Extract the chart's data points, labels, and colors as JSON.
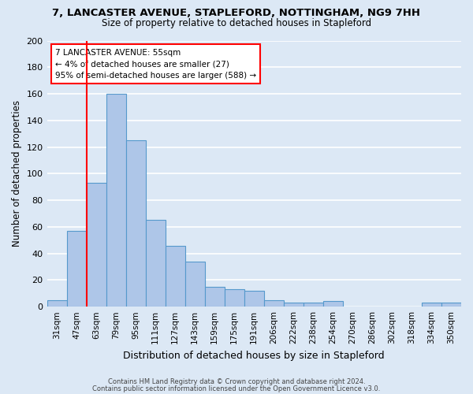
{
  "title1": "7, LANCASTER AVENUE, STAPLEFORD, NOTTINGHAM, NG9 7HH",
  "title2": "Size of property relative to detached houses in Stapleford",
  "xlabel": "Distribution of detached houses by size in Stapleford",
  "ylabel": "Number of detached properties",
  "categories": [
    "31sqm",
    "47sqm",
    "63sqm",
    "79sqm",
    "95sqm",
    "111sqm",
    "127sqm",
    "143sqm",
    "159sqm",
    "175sqm",
    "191sqm",
    "206sqm",
    "222sqm",
    "238sqm",
    "254sqm",
    "270sqm",
    "286sqm",
    "302sqm",
    "318sqm",
    "334sqm",
    "350sqm"
  ],
  "values": [
    5,
    57,
    93,
    160,
    125,
    65,
    46,
    34,
    15,
    13,
    12,
    5,
    3,
    3,
    4,
    0,
    0,
    0,
    0,
    3,
    3
  ],
  "bar_color": "#aec6e8",
  "bar_edge_color": "#5599cc",
  "red_line_x": 1.5,
  "annotation_text": "7 LANCASTER AVENUE: 55sqm\n← 4% of detached houses are smaller (27)\n95% of semi-detached houses are larger (588) →",
  "ylim": [
    0,
    200
  ],
  "yticks": [
    0,
    20,
    40,
    60,
    80,
    100,
    120,
    140,
    160,
    180,
    200
  ],
  "footer1": "Contains HM Land Registry data © Crown copyright and database right 2024.",
  "footer2": "Contains public sector information licensed under the Open Government Licence v3.0.",
  "bg_color": "#dce8f5",
  "grid_color": "#ffffff"
}
